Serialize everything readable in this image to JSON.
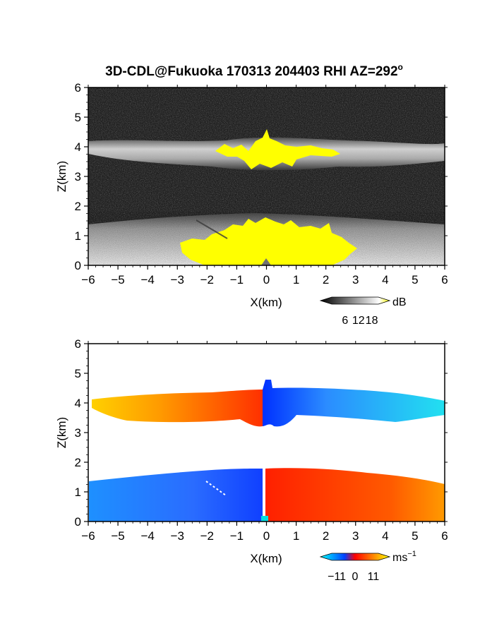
{
  "title": "3D-CDL@Fukuoka 170313 204403 RHI AZ=292",
  "title_superscript": "o",
  "chart_data": [
    {
      "type": "heatmap",
      "variable": "backscatter",
      "xlabel": "X(km)",
      "ylabel": "Z(km)",
      "xlim": [
        -6,
        6
      ],
      "ylim": [
        0,
        6
      ],
      "x_ticks": [
        "-6",
        "-5",
        "-4",
        "-3",
        "-2",
        "-1",
        "0",
        "1",
        "2",
        "3",
        "4",
        "5",
        "6"
      ],
      "y_ticks": [
        "0",
        "1",
        "2",
        "3",
        "4",
        "5",
        "6"
      ],
      "colorbar": {
        "unit": "dB",
        "ticks": [
          "6",
          "12",
          "18"
        ],
        "tick_values": [
          6,
          12,
          18
        ],
        "range": [
          0,
          21
        ],
        "colors": [
          "#000000",
          "#ffffff",
          "#ffff00"
        ]
      },
      "layers": [
        {
          "name": "upper cloud layer",
          "z_range_km": [
            3.3,
            4.3
          ],
          "x_range_km": [
            -6,
            6
          ],
          "level": "moderate to strong"
        },
        {
          "name": "lower layer",
          "z_range_km": [
            0,
            1.6
          ],
          "x_range_km": [
            -6,
            6
          ],
          "level": "strong near 0-1 km, X -3 to 3"
        }
      ]
    },
    {
      "type": "heatmap",
      "variable": "radial velocity",
      "xlabel": "X(km)",
      "ylabel": "Z(km)",
      "xlim": [
        -6,
        6
      ],
      "ylim": [
        0,
        6
      ],
      "x_ticks": [
        "-6",
        "-5",
        "-4",
        "-3",
        "-2",
        "-1",
        "0",
        "1",
        "2",
        "3",
        "4",
        "5",
        "6"
      ],
      "y_ticks": [
        "0",
        "1",
        "2",
        "3",
        "4",
        "5",
        "6"
      ],
      "colorbar": {
        "unit": "ms",
        "unit_superscript": "−1",
        "ticks": [
          "−11",
          "0",
          "11"
        ],
        "tick_values": [
          -11,
          0,
          11
        ],
        "range": [
          -14,
          14
        ],
        "colors": [
          "#00ffff",
          "#0040ff",
          "#ff0000",
          "#ff8000",
          "#ffff00"
        ]
      },
      "layers": [
        {
          "name": "upper layer left",
          "z_range_km": [
            3.3,
            4.3
          ],
          "x_range_km": [
            -6,
            0
          ],
          "velocity_ms": [
            4,
            12
          ]
        },
        {
          "name": "upper layer right",
          "z_range_km": [
            3.3,
            4.7
          ],
          "x_range_km": [
            0,
            6
          ],
          "velocity_ms": [
            -12,
            -3
          ]
        },
        {
          "name": "lower layer left",
          "z_range_km": [
            0,
            1.6
          ],
          "x_range_km": [
            -6,
            0
          ],
          "velocity_ms": [
            -6,
            -3
          ]
        },
        {
          "name": "lower layer right",
          "z_range_km": [
            0,
            1.7
          ],
          "x_range_km": [
            0,
            6
          ],
          "velocity_ms": [
            3,
            8
          ]
        }
      ]
    }
  ]
}
